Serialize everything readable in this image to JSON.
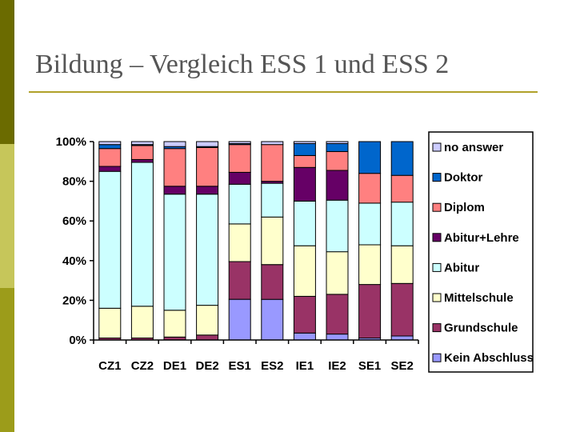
{
  "slide": {
    "title": "Bildung – Vergleich ESS 1 und ESS 2"
  },
  "colors": {
    "band_top": "#6b6b00",
    "band_mid": "#c6c65a",
    "band_bot": "#9c9c1a",
    "title_rule": "#b0a12a"
  },
  "chart_data": {
    "type": "bar",
    "stacked": true,
    "percent": true,
    "title": "",
    "xlabel": "",
    "ylabel": "",
    "ylim": [
      0,
      100
    ],
    "yticks": [
      "0%",
      "20%",
      "40%",
      "60%",
      "80%",
      "100%"
    ],
    "grid": false,
    "legend_position": "right",
    "categories": [
      "CZ1",
      "CZ2",
      "DE1",
      "DE2",
      "ES1",
      "ES2",
      "IE1",
      "IE2",
      "SE1",
      "SE2"
    ],
    "series": [
      {
        "name": "Kein Abschluss",
        "color": "#9999ff",
        "values": [
          0,
          0,
          0,
          0,
          20.5,
          20.5,
          3.5,
          3,
          1,
          2
        ]
      },
      {
        "name": "Grundschule",
        "color": "#993366",
        "values": [
          1,
          1,
          1.5,
          2.5,
          19,
          17.5,
          18.5,
          20,
          27,
          26.5
        ]
      },
      {
        "name": "Mittelschule",
        "color": "#ffffcc",
        "values": [
          15,
          16,
          13.5,
          15,
          19,
          24,
          25.5,
          21.5,
          20,
          19
        ]
      },
      {
        "name": "Abitur",
        "color": "#ccffff",
        "values": [
          69,
          72.5,
          58.5,
          56,
          20,
          17,
          22.5,
          26,
          21,
          22
        ]
      },
      {
        "name": "Abitur+Lehre",
        "color": "#660066",
        "values": [
          2.5,
          1.5,
          4,
          4,
          6,
          1,
          17,
          15,
          0,
          0
        ]
      },
      {
        "name": "Diplom",
        "color": "#ff8080",
        "values": [
          9,
          7,
          19,
          19.5,
          14,
          18.5,
          6,
          9.5,
          15,
          13.5
        ]
      },
      {
        "name": "Doktor",
        "color": "#0066cc",
        "values": [
          2,
          0.5,
          1,
          0.5,
          0.5,
          0,
          6,
          4,
          16,
          17
        ]
      },
      {
        "name": "no answer",
        "color": "#ccccff",
        "values": [
          1.5,
          1.5,
          2.5,
          2.5,
          1,
          1.5,
          1,
          1,
          0,
          0
        ]
      }
    ]
  }
}
